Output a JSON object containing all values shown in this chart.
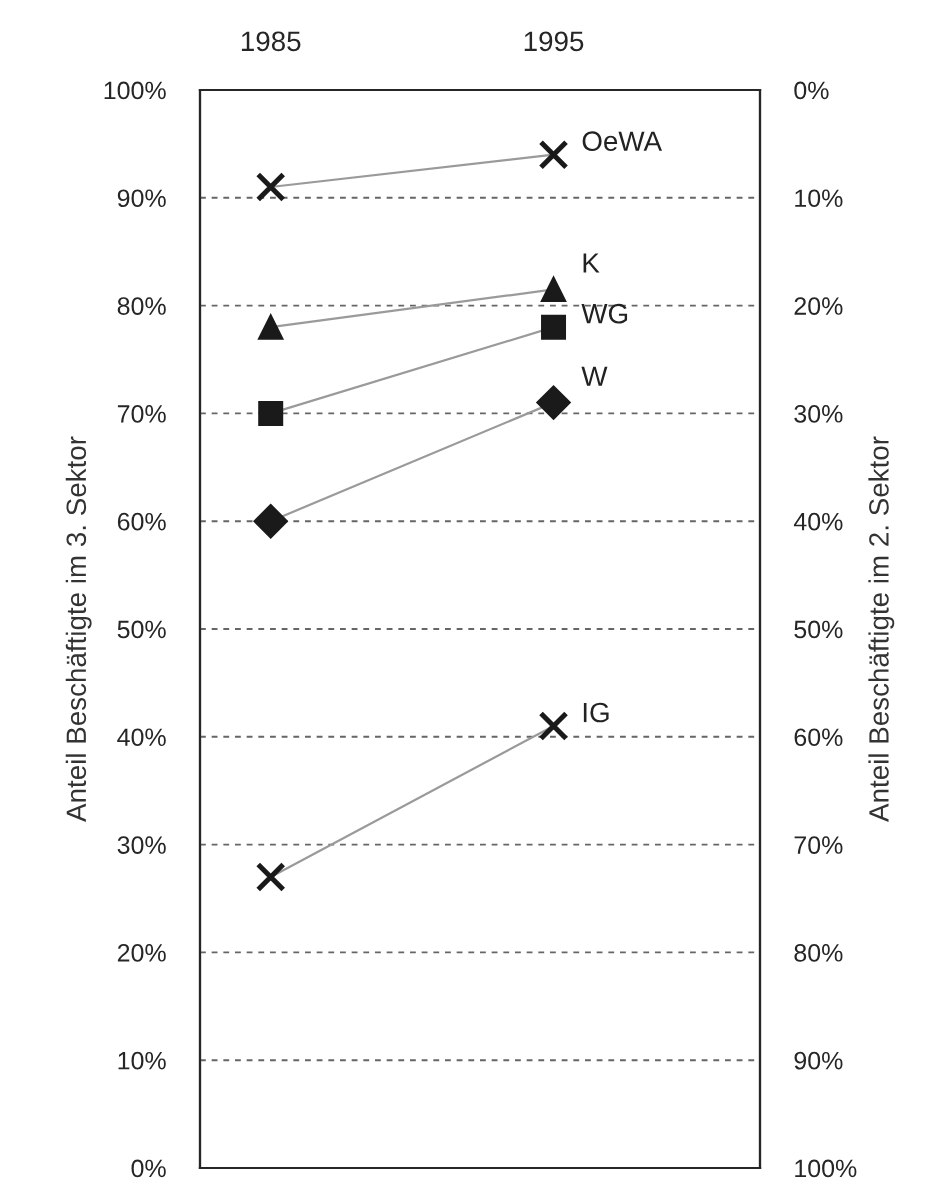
{
  "chart_data": {
    "type": "line",
    "categories": [
      "1985",
      "1995"
    ],
    "ylabel": "Anteil Beschäftigte im 3. Sektor",
    "y2label": "Anteil Beschäftigte im 2. Sektor",
    "ylim": [
      0,
      100
    ],
    "yticks": [
      {
        "value": 0,
        "label": "0%"
      },
      {
        "value": 10,
        "label": "10%"
      },
      {
        "value": 20,
        "label": "20%"
      },
      {
        "value": 30,
        "label": "30%"
      },
      {
        "value": 40,
        "label": "40%"
      },
      {
        "value": 50,
        "label": "50%"
      },
      {
        "value": 60,
        "label": "60%"
      },
      {
        "value": 70,
        "label": "70%"
      },
      {
        "value": 80,
        "label": "80%"
      },
      {
        "value": 90,
        "label": "90%"
      },
      {
        "value": 100,
        "label": "100%"
      }
    ],
    "y2lim": [
      100,
      0
    ],
    "y2ticks": [
      {
        "value": 0,
        "label": "0%"
      },
      {
        "value": 10,
        "label": "10%"
      },
      {
        "value": 20,
        "label": "20%"
      },
      {
        "value": 30,
        "label": "30%"
      },
      {
        "value": 40,
        "label": "40%"
      },
      {
        "value": 50,
        "label": "50%"
      },
      {
        "value": 60,
        "label": "60%"
      },
      {
        "value": 70,
        "label": "70%"
      },
      {
        "value": 80,
        "label": "80%"
      },
      {
        "value": 90,
        "label": "90%"
      },
      {
        "value": 100,
        "label": "100%"
      }
    ],
    "grid": "y",
    "line_style": "solid",
    "legend": false,
    "series": [
      {
        "name": "OeWA",
        "color": "#1a1a1a",
        "marker": "cross",
        "values": [
          91,
          94
        ]
      },
      {
        "name": "K",
        "color": "#1a1a1a",
        "marker": "triangle",
        "values": [
          78,
          81.5
        ]
      },
      {
        "name": "WG",
        "color": "#1a1a1a",
        "marker": "square",
        "values": [
          70,
          78
        ]
      },
      {
        "name": "W",
        "color": "#1a1a1a",
        "marker": "diamond",
        "values": [
          60,
          71
        ]
      },
      {
        "name": "IG",
        "color": "#1a1a1a",
        "marker": "cross",
        "values": [
          27,
          41
        ]
      }
    ]
  }
}
